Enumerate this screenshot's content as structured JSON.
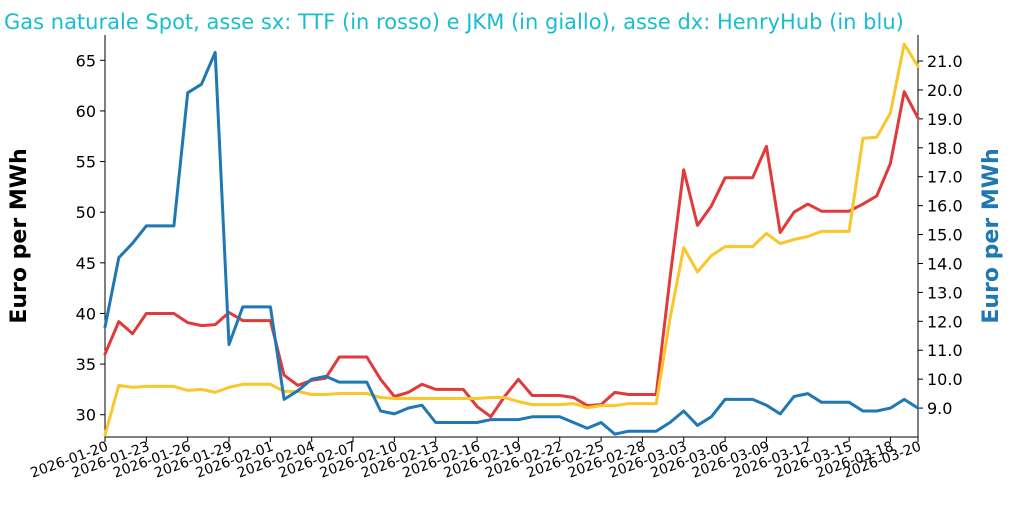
{
  "title": "Gas naturale Spot, asse sx: TTF (in rosso) e JKM (in giallo), asse dx: HenryHub (in blu)",
  "colors": {
    "title": "#17becf",
    "ttf": "#e03a3a",
    "jkm": "#f9c62b",
    "henryhub": "#1f77b4"
  },
  "chart_data": {
    "type": "line",
    "x": [
      "2026-01-20",
      "2026-01-21",
      "2026-01-22",
      "2026-01-23",
      "2026-01-24",
      "2026-01-25",
      "2026-01-26",
      "2026-01-27",
      "2026-01-28",
      "2026-01-29",
      "2026-01-30",
      "2026-01-31",
      "2026-02-01",
      "2026-02-02",
      "2026-02-03",
      "2026-02-04",
      "2026-02-05",
      "2026-02-06",
      "2026-02-07",
      "2026-02-08",
      "2026-02-09",
      "2026-02-10",
      "2026-02-11",
      "2026-02-12",
      "2026-02-13",
      "2026-02-14",
      "2026-02-15",
      "2026-02-16",
      "2026-02-17",
      "2026-02-18",
      "2026-02-19",
      "2026-02-20",
      "2026-02-21",
      "2026-02-22",
      "2026-02-23",
      "2026-02-24",
      "2026-02-25",
      "2026-02-26",
      "2026-02-27",
      "2026-02-28",
      "2026-03-01",
      "2026-03-02",
      "2026-03-03",
      "2026-03-04",
      "2026-03-05",
      "2026-03-06",
      "2026-03-07",
      "2026-03-08",
      "2026-03-09",
      "2026-03-10",
      "2026-03-11",
      "2026-03-12",
      "2026-03-13",
      "2026-03-14",
      "2026-03-15",
      "2026-03-16",
      "2026-03-17",
      "2026-03-18",
      "2026-03-19",
      "2026-03-20"
    ],
    "x_ticks": [
      "2026-01-20",
      "2026-01-23",
      "2026-01-26",
      "2026-01-29",
      "2026-02-01",
      "2026-02-04",
      "2026-02-07",
      "2026-02-10",
      "2026-02-13",
      "2026-02-16",
      "2026-02-19",
      "2026-02-22",
      "2026-02-25",
      "2026-02-28",
      "2026-03-03",
      "2026-03-06",
      "2026-03-09",
      "2026-03-12",
      "2026-03-15",
      "2026-03-18",
      "2026-03-20"
    ],
    "y_left": {
      "label": "Euro per MWh",
      "ticks": [
        30,
        35,
        40,
        45,
        50,
        55,
        60,
        65
      ],
      "range": [
        27.8,
        67.5
      ]
    },
    "y_right": {
      "label": "Euro per MWh",
      "ticks": [
        "9.0",
        "10.0",
        "11.0",
        "12.0",
        "13.0",
        "14.0",
        "15.0",
        "16.0",
        "17.0",
        "18.0",
        "19.0",
        "20.0",
        "21.0"
      ],
      "range": [
        8.0,
        21.9
      ]
    },
    "series": [
      {
        "key": "ttf",
        "axis": "left",
        "values": [
          36.0,
          39.2,
          38.0,
          40.0,
          40.0,
          40.0,
          39.1,
          38.8,
          38.9,
          40.1,
          39.3,
          39.3,
          39.3,
          33.9,
          32.9,
          33.4,
          33.6,
          35.7,
          35.7,
          35.7,
          33.5,
          31.8,
          32.2,
          33.0,
          32.5,
          32.5,
          32.5,
          30.8,
          29.8,
          31.8,
          33.5,
          31.9,
          31.9,
          31.9,
          31.7,
          30.9,
          31.0,
          32.2,
          32.0,
          32.0,
          32.0,
          43.5,
          54.2,
          48.7,
          50.6,
          53.4,
          53.4,
          53.4,
          56.5,
          48.0,
          50.0,
          50.8,
          50.1,
          50.1,
          50.1,
          50.8,
          51.6,
          54.8,
          61.9,
          59.3
        ]
      },
      {
        "key": "jkm",
        "axis": "left",
        "values": [
          28.0,
          32.9,
          32.7,
          32.8,
          32.8,
          32.8,
          32.4,
          32.5,
          32.2,
          32.7,
          33.0,
          33.0,
          33.0,
          32.3,
          32.3,
          32.0,
          32.0,
          32.1,
          32.1,
          32.1,
          31.7,
          31.6,
          31.6,
          31.6,
          31.6,
          31.6,
          31.6,
          31.6,
          31.7,
          31.7,
          31.3,
          31.0,
          31.0,
          31.0,
          31.1,
          30.7,
          30.9,
          30.9,
          31.1,
          31.1,
          31.1,
          39.5,
          46.5,
          44.1,
          45.7,
          46.6,
          46.6,
          46.6,
          47.9,
          46.9,
          47.3,
          47.6,
          48.1,
          48.1,
          48.1,
          57.3,
          57.4,
          59.8,
          66.6,
          64.4
        ]
      },
      {
        "key": "henryhub",
        "axis": "right",
        "values": [
          11.8,
          14.2,
          14.7,
          15.3,
          15.3,
          15.3,
          19.9,
          20.2,
          21.3,
          11.2,
          12.5,
          12.5,
          12.5,
          9.3,
          9.6,
          10.0,
          10.1,
          9.9,
          9.9,
          9.9,
          8.9,
          8.8,
          9.0,
          9.1,
          8.5,
          8.5,
          8.5,
          8.5,
          8.6,
          8.6,
          8.6,
          8.7,
          8.7,
          8.7,
          8.5,
          8.3,
          8.5,
          8.1,
          8.2,
          8.2,
          8.2,
          8.5,
          8.9,
          8.4,
          8.7,
          9.3,
          9.3,
          9.3,
          9.1,
          8.8,
          9.4,
          9.5,
          9.2,
          9.2,
          9.2,
          8.9,
          8.9,
          9.0,
          9.3,
          9.0
        ]
      }
    ]
  }
}
